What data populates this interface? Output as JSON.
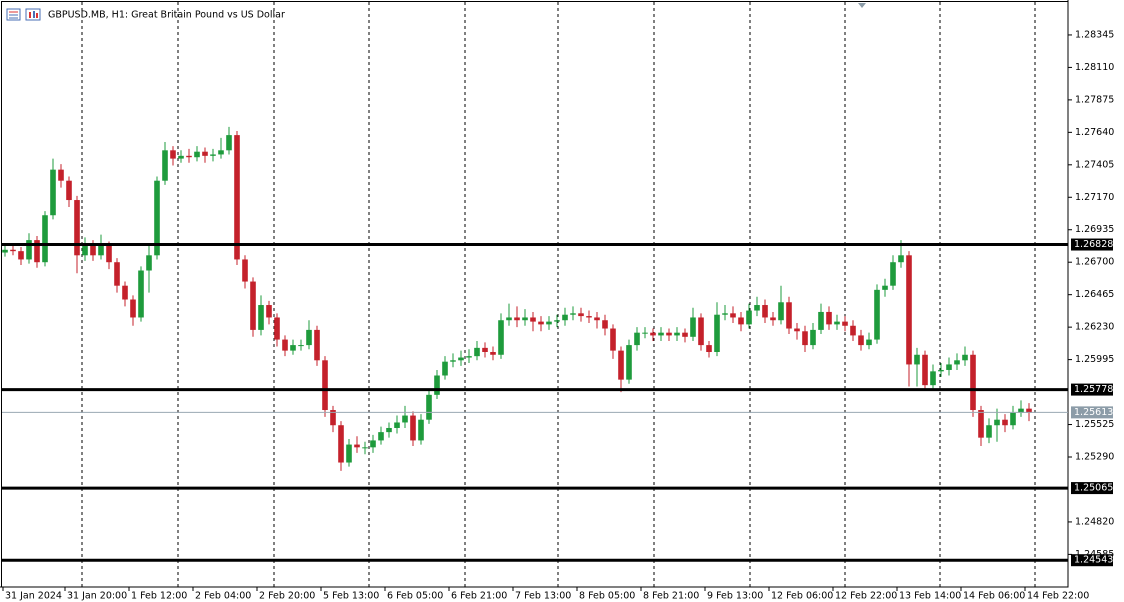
{
  "chart_data": {
    "type": "candlestick",
    "title": "GBPUSD.MB, H1:  Great Britain Pound vs US Dollar",
    "up_color": "#1e9b3c",
    "down_color": "#c4212b",
    "open": [
      1.2677,
      1.2679,
      1.2678,
      1.2672,
      1.2686,
      1.267,
      1.2704,
      1.2737,
      1.2729,
      1.2715,
      1.2675,
      1.2682,
      1.2675,
      1.2682,
      1.267,
      1.2653,
      1.2643,
      1.263,
      1.2664,
      1.2675,
      1.2729,
      1.2751,
      1.2745,
      1.2747,
      1.2746,
      1.275,
      1.2747,
      1.2748,
      1.2751,
      1.2762,
      1.2672,
      1.2656,
      1.2621,
      1.2639,
      1.263,
      1.2614,
      1.2606,
      1.261,
      1.261,
      1.2621,
      1.2599,
      1.2563,
      1.2552,
      1.2525,
      1.2538,
      1.2536,
      1.2536,
      1.2541,
      1.2547,
      1.255,
      1.2554,
      1.2559,
      1.2541,
      1.2556,
      1.2574,
      1.2588,
      1.2598,
      1.2599,
      1.2601,
      1.2602,
      1.2608,
      1.2605,
      1.2603,
      1.2628,
      1.263,
      1.2628,
      1.263,
      1.2627,
      1.2625,
      1.2627,
      1.2628,
      1.2632,
      1.2633,
      1.2631,
      1.263,
      1.2628,
      1.2622,
      1.2606,
      1.2585,
      1.261,
      1.2619,
      1.2619,
      1.2617,
      1.2619,
      1.2617,
      1.2619,
      1.2616,
      1.263,
      1.261,
      1.2605,
      1.2632,
      1.2633,
      1.263,
      1.2625,
      1.2635,
      1.2639,
      1.263,
      1.2628,
      1.2641,
      1.2622,
      1.262,
      1.261,
      1.2621,
      1.2634,
      1.2625,
      1.2627,
      1.2624,
      1.2617,
      1.261,
      1.2614,
      1.265,
      1.2653,
      1.267,
      1.2675,
      1.2596,
      1.2603,
      1.2581,
      1.2591,
      1.2592,
      1.2596,
      1.2599,
      1.2603,
      1.2563,
      1.2543,
      1.2552,
      1.2556,
      1.2552,
      1.2561,
      1.2564
    ],
    "high": [
      1.2682,
      1.2682,
      1.2681,
      1.2691,
      1.2689,
      1.2707,
      1.2745,
      1.2741,
      1.2732,
      1.2718,
      1.2688,
      1.2686,
      1.269,
      1.2685,
      1.2673,
      1.2656,
      1.2646,
      1.2667,
      1.2682,
      1.2732,
      1.2757,
      1.2754,
      1.2751,
      1.2752,
      1.2754,
      1.2753,
      1.2752,
      1.276,
      1.2768,
      1.2765,
      1.2675,
      1.2659,
      1.2646,
      1.2642,
      1.2633,
      1.2617,
      1.2614,
      1.2614,
      1.2628,
      1.2624,
      1.2602,
      1.2566,
      1.2555,
      1.2542,
      1.2544,
      1.254,
      1.2545,
      1.2551,
      1.2554,
      1.2559,
      1.2566,
      1.2562,
      1.256,
      1.2578,
      1.2592,
      1.2602,
      1.2604,
      1.2606,
      1.2607,
      1.2613,
      1.2612,
      1.2609,
      1.2633,
      1.264,
      1.2638,
      1.2636,
      1.2634,
      1.2631,
      1.2631,
      1.2632,
      1.2637,
      1.2638,
      1.2637,
      1.2635,
      1.2634,
      1.2632,
      1.2625,
      1.2609,
      1.2614,
      1.2623,
      1.2623,
      1.2622,
      1.2623,
      1.2622,
      1.2623,
      1.2622,
      1.2637,
      1.2633,
      1.2613,
      1.2641,
      1.2639,
      1.2638,
      1.2634,
      1.264,
      1.2645,
      1.2643,
      1.2634,
      1.2653,
      1.2645,
      1.2626,
      1.2624,
      1.2626,
      1.264,
      1.2638,
      1.2632,
      1.2631,
      1.2628,
      1.2621,
      1.2619,
      1.2654,
      1.2658,
      1.2675,
      1.2686,
      1.2678,
      1.2608,
      1.2606,
      1.2596,
      1.2597,
      1.2601,
      1.2604,
      1.2609,
      1.2606,
      1.2566,
      1.2557,
      1.2564,
      1.256,
      1.2566,
      1.257,
      1.2568
    ],
    "low": [
      1.2674,
      1.2675,
      1.2668,
      1.2669,
      1.2666,
      1.2667,
      1.2701,
      1.2724,
      1.271,
      1.2662,
      1.2671,
      1.2671,
      1.2672,
      1.2665,
      1.2648,
      1.2638,
      1.2624,
      1.2627,
      1.2648,
      1.2672,
      1.2726,
      1.274,
      1.2742,
      1.2742,
      1.2743,
      1.2742,
      1.2743,
      1.2745,
      1.2748,
      1.2668,
      1.2651,
      1.2616,
      1.2617,
      1.2625,
      1.2609,
      1.2602,
      1.2603,
      1.2606,
      1.2607,
      1.2595,
      1.2558,
      1.2547,
      1.2519,
      1.2522,
      1.2532,
      1.2531,
      1.2532,
      1.2538,
      1.2543,
      1.2546,
      1.255,
      1.2537,
      1.2538,
      1.2553,
      1.2571,
      1.2585,
      1.2594,
      1.2595,
      1.2597,
      1.2599,
      1.2601,
      1.2599,
      1.26,
      1.2624,
      1.2623,
      1.2624,
      1.262,
      1.262,
      1.2621,
      1.2623,
      1.2624,
      1.2628,
      1.2627,
      1.2626,
      1.2622,
      1.2617,
      1.26,
      1.2576,
      1.2582,
      1.2606,
      1.2615,
      1.2613,
      1.2613,
      1.2613,
      1.2613,
      1.2612,
      1.2613,
      1.2606,
      1.2601,
      1.2602,
      1.2628,
      1.2626,
      1.262,
      1.2622,
      1.2631,
      1.2626,
      1.2624,
      1.2625,
      1.2618,
      1.2614,
      1.2605,
      1.2607,
      1.2618,
      1.2621,
      1.2621,
      1.262,
      1.2613,
      1.2606,
      1.2607,
      1.2611,
      1.2645,
      1.265,
      1.2666,
      1.258,
      1.258,
      1.2577,
      1.2577,
      1.2587,
      1.2588,
      1.2592,
      1.2595,
      1.2558,
      1.2537,
      1.2539,
      1.254,
      1.2547,
      1.2549,
      1.2558,
      1.2555
    ],
    "close": [
      1.2679,
      1.2678,
      1.2672,
      1.2686,
      1.267,
      1.2704,
      1.2737,
      1.2729,
      1.2715,
      1.2675,
      1.2682,
      1.2675,
      1.2682,
      1.267,
      1.2653,
      1.2643,
      1.263,
      1.2664,
      1.2675,
      1.2729,
      1.2751,
      1.2745,
      1.2747,
      1.2746,
      1.275,
      1.2747,
      1.2748,
      1.2751,
      1.2762,
      1.2672,
      1.2656,
      1.2621,
      1.2639,
      1.263,
      1.2614,
      1.2606,
      1.261,
      1.261,
      1.2621,
      1.2599,
      1.2563,
      1.2552,
      1.2525,
      1.2538,
      1.2536,
      1.2536,
      1.2541,
      1.2547,
      1.255,
      1.2554,
      1.2559,
      1.2541,
      1.2556,
      1.2574,
      1.2588,
      1.2598,
      1.2599,
      1.2601,
      1.2602,
      1.2608,
      1.2605,
      1.2603,
      1.2628,
      1.263,
      1.2628,
      1.263,
      1.2627,
      1.2625,
      1.2627,
      1.2628,
      1.2632,
      1.2633,
      1.2631,
      1.263,
      1.2628,
      1.2622,
      1.2606,
      1.2585,
      1.261,
      1.2619,
      1.2619,
      1.2617,
      1.2619,
      1.2617,
      1.2619,
      1.2616,
      1.263,
      1.261,
      1.2605,
      1.2632,
      1.2633,
      1.263,
      1.2625,
      1.2635,
      1.2639,
      1.263,
      1.2628,
      1.2641,
      1.2622,
      1.262,
      1.261,
      1.2621,
      1.2634,
      1.2625,
      1.2627,
      1.2624,
      1.2617,
      1.261,
      1.2614,
      1.265,
      1.2653,
      1.267,
      1.2675,
      1.2596,
      1.2603,
      1.2581,
      1.2591,
      1.2592,
      1.2596,
      1.2599,
      1.2603,
      1.2563,
      1.2543,
      1.2552,
      1.2556,
      1.2552,
      1.2561,
      1.2564,
      1.2561
    ],
    "xlim": [
      -0.625,
      132.875
    ],
    "xticks": [
      {
        "value": -0.25,
        "label": "31 Jan 2024"
      },
      {
        "value": 7.5,
        "label": "31 Jan 20:00"
      },
      {
        "value": 15.5,
        "label": "1 Feb 12:00"
      },
      {
        "value": 23.5,
        "label": "2 Feb 04:00"
      },
      {
        "value": 31.5,
        "label": "2 Feb 20:00"
      },
      {
        "value": 39.5,
        "label": "5 Feb 13:00"
      },
      {
        "value": 47.5,
        "label": "6 Feb 05:00"
      },
      {
        "value": 55.5,
        "label": "6 Feb 21:00"
      },
      {
        "value": 63.5,
        "label": "7 Feb 13:00"
      },
      {
        "value": 71.5,
        "label": "8 Feb 05:00"
      },
      {
        "value": 79.5,
        "label": "8 Feb 21:00"
      },
      {
        "value": 87.5,
        "label": "9 Feb 13:00"
      },
      {
        "value": 95.5,
        "label": "12 Feb 06:00"
      },
      {
        "value": 103.5,
        "label": "12 Feb 22:00"
      },
      {
        "value": 111.5,
        "label": "13 Feb 14:00"
      },
      {
        "value": 119.5,
        "label": "14 Feb 06:00"
      },
      {
        "value": 127.5,
        "label": "14 Feb 22:00"
      }
    ],
    "ylim": [
      1.24349,
      1.28598
    ],
    "yticks": [
      1.28345,
      {
        "value": 1.2811,
        "label": "1.28110"
      },
      1.27875,
      {
        "value": 1.2764,
        "label": "1.27640"
      },
      1.27405,
      {
        "value": 1.2717,
        "label": "1.27170"
      },
      1.26935,
      {
        "value": 1.267,
        "label": "1.26700"
      },
      1.26465,
      {
        "value": 1.2623,
        "label": "1.26230"
      },
      1.25995,
      1.25525,
      {
        "value": 1.2529,
        "label": "1.25290"
      },
      {
        "value": 1.2482,
        "label": "1.24820"
      },
      1.24585
    ],
    "hlines": [
      1.26828,
      1.25778,
      1.25065,
      1.24543
    ],
    "current_price": 1.25613
  }
}
